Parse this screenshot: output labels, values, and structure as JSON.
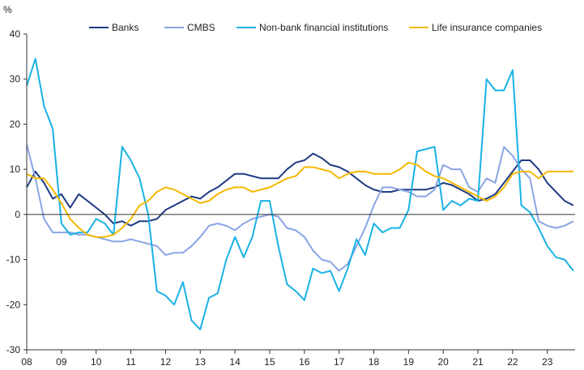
{
  "chart_data": {
    "type": "line",
    "title": "",
    "xlabel": "",
    "ylabel": "%",
    "ylim": [
      -30,
      40
    ],
    "yticks": [
      -30,
      -20,
      -10,
      0,
      10,
      20,
      30,
      40
    ],
    "xlim": [
      2008,
      2023.8
    ],
    "xtick_labels": [
      "08",
      "09",
      "10",
      "11",
      "12",
      "13",
      "14",
      "15",
      "16",
      "17",
      "18",
      "19",
      "20",
      "21",
      "22",
      "23"
    ],
    "xtick_values": [
      2008,
      2009,
      2010,
      2011,
      2012,
      2013,
      2014,
      2015,
      2016,
      2017,
      2018,
      2019,
      2020,
      2021,
      2022,
      2023
    ],
    "legend_position": "top",
    "series": [
      {
        "name": "Banks",
        "color": "#1f3b84",
        "x": [
          2008,
          2008.25,
          2008.5,
          2008.75,
          2009,
          2009.25,
          2009.5,
          2009.75,
          2010,
          2010.25,
          2010.5,
          2010.75,
          2011,
          2011.25,
          2011.5,
          2011.75,
          2012,
          2012.25,
          2012.5,
          2012.75,
          2013,
          2013.25,
          2013.5,
          2013.75,
          2014,
          2014.25,
          2014.5,
          2014.75,
          2015,
          2015.25,
          2015.5,
          2015.75,
          2016,
          2016.25,
          2016.5,
          2016.75,
          2017,
          2017.25,
          2017.5,
          2017.75,
          2018,
          2018.25,
          2018.5,
          2018.75,
          2019,
          2019.25,
          2019.5,
          2019.75,
          2020,
          2020.25,
          2020.5,
          2020.75,
          2021,
          2021.25,
          2021.5,
          2021.75,
          2022,
          2022.25,
          2022.5,
          2022.75,
          2023,
          2023.25,
          2023.5,
          2023.75
        ],
        "values": [
          6,
          9.5,
          7,
          3.5,
          4.5,
          1.5,
          4.5,
          3,
          1.5,
          0,
          -2,
          -1.5,
          -2.5,
          -1.5,
          -1.5,
          -1,
          1,
          2,
          3,
          4,
          3.5,
          5,
          6,
          7.5,
          9,
          9,
          8.5,
          8,
          8,
          8,
          10,
          11.5,
          12,
          13.5,
          12.5,
          11,
          10.5,
          9.5,
          8,
          6.5,
          5.5,
          5,
          5,
          5.5,
          5.5,
          5.5,
          5.5,
          6,
          7,
          6.5,
          5.5,
          4.5,
          3,
          3.5,
          4.5,
          7,
          9.5,
          12,
          12,
          10,
          7,
          5,
          3,
          2
        ]
      },
      {
        "name": "CMBS",
        "color": "#8aa4e4",
        "x": [
          2008,
          2008.25,
          2008.5,
          2008.75,
          2009,
          2009.25,
          2009.5,
          2009.75,
          2010,
          2010.25,
          2010.5,
          2010.75,
          2011,
          2011.25,
          2011.5,
          2011.75,
          2012,
          2012.25,
          2012.5,
          2012.75,
          2013,
          2013.25,
          2013.5,
          2013.75,
          2014,
          2014.25,
          2014.5,
          2014.75,
          2015,
          2015.25,
          2015.5,
          2015.75,
          2016,
          2016.25,
          2016.5,
          2016.75,
          2017,
          2017.25,
          2017.5,
          2017.75,
          2018,
          2018.25,
          2018.5,
          2018.75,
          2019,
          2019.25,
          2019.5,
          2019.75,
          2020,
          2020.25,
          2020.5,
          2020.75,
          2021,
          2021.25,
          2021.5,
          2021.75,
          2022,
          2022.25,
          2022.5,
          2022.75,
          2023,
          2023.25,
          2023.5,
          2023.75
        ],
        "values": [
          15.5,
          8,
          -1,
          -4,
          -4,
          -4,
          -4.5,
          -4.5,
          -5,
          -5.5,
          -6,
          -6,
          -5.5,
          -6,
          -6.5,
          -7,
          -9,
          -8.5,
          -8.5,
          -7,
          -5,
          -2.5,
          -2,
          -2.5,
          -3.5,
          -2,
          -1,
          -0.5,
          0,
          -0.5,
          -3,
          -3.5,
          -5,
          -8,
          -10,
          -10.5,
          -12.5,
          -11,
          -7,
          -3,
          2,
          6,
          6,
          5.5,
          5,
          4,
          4,
          5.5,
          11,
          10,
          10,
          6,
          5,
          8,
          7,
          15,
          13,
          10,
          8,
          -1.5,
          -2.5,
          -3,
          -2.5,
          -1.5
        ]
      },
      {
        "name": "Non-bank financial institutions",
        "color": "#19b2e4",
        "x": [
          2008,
          2008.25,
          2008.5,
          2008.75,
          2009,
          2009.25,
          2009.5,
          2009.75,
          2010,
          2010.25,
          2010.5,
          2010.75,
          2011,
          2011.25,
          2011.5,
          2011.75,
          2012,
          2012.25,
          2012.5,
          2012.75,
          2013,
          2013.25,
          2013.5,
          2013.75,
          2014,
          2014.25,
          2014.5,
          2014.75,
          2015,
          2015.25,
          2015.5,
          2015.75,
          2016,
          2016.25,
          2016.5,
          2016.75,
          2017,
          2017.25,
          2017.5,
          2017.75,
          2018,
          2018.25,
          2018.5,
          2018.75,
          2019,
          2019.25,
          2019.5,
          2019.75,
          2020,
          2020.25,
          2020.5,
          2020.75,
          2021,
          2021.25,
          2021.5,
          2021.75,
          2022,
          2022.25,
          2022.5,
          2022.75,
          2023,
          2023.25,
          2023.5,
          2023.75
        ],
        "values": [
          28.5,
          34.5,
          24,
          19,
          -2,
          -4.5,
          -4,
          -4,
          -1,
          -2,
          -4.5,
          15,
          12,
          8,
          0,
          -17,
          -18,
          -20,
          -15,
          -23.5,
          -25.5,
          -18.5,
          -17.5,
          -10,
          -5,
          -9.5,
          -5,
          3,
          3,
          -7,
          -15.5,
          -17,
          -19,
          -12,
          -13,
          -12.5,
          -17,
          -12,
          -5.5,
          -9,
          -2,
          -4,
          -3,
          -3,
          1,
          14,
          14.5,
          15,
          1,
          3,
          2,
          3.5,
          3,
          30,
          27.5,
          27.5,
          32,
          2,
          0.5,
          -3,
          -7,
          -9.5,
          -10,
          -12.5
        ]
      },
      {
        "name": "Life insurance companies",
        "color": "#f5b800",
        "x": [
          2008,
          2008.25,
          2008.5,
          2008.75,
          2009,
          2009.25,
          2009.5,
          2009.75,
          2010,
          2010.25,
          2010.5,
          2010.75,
          2011,
          2011.25,
          2011.5,
          2011.75,
          2012,
          2012.25,
          2012.5,
          2012.75,
          2013,
          2013.25,
          2013.5,
          2013.75,
          2014,
          2014.25,
          2014.5,
          2014.75,
          2015,
          2015.25,
          2015.5,
          2015.75,
          2016,
          2016.25,
          2016.5,
          2016.75,
          2017,
          2017.25,
          2017.5,
          2017.75,
          2018,
          2018.25,
          2018.5,
          2018.75,
          2019,
          2019.25,
          2019.5,
          2019.75,
          2020,
          2020.25,
          2020.5,
          2020.75,
          2021,
          2021.25,
          2021.5,
          2021.75,
          2022,
          2022.25,
          2022.5,
          2022.75,
          2023,
          2023.25,
          2023.5,
          2023.75
        ],
        "values": [
          9,
          8,
          8,
          5.5,
          2.5,
          -1,
          -3,
          -4.5,
          -5,
          -5,
          -4.5,
          -3,
          -1,
          2,
          3,
          5,
          6,
          5.5,
          4.5,
          3.5,
          2.5,
          3,
          4.5,
          5.5,
          6,
          6,
          5,
          5.5,
          6,
          7,
          8,
          8.5,
          10.5,
          10.5,
          10,
          9.5,
          8,
          9,
          9.5,
          9.5,
          9,
          9,
          9,
          10,
          11.5,
          11,
          9.5,
          8.5,
          8,
          7,
          6,
          5,
          4,
          3,
          4,
          6,
          9,
          9.5,
          9.5,
          8,
          9.5,
          9.5,
          9.5,
          9.5
        ]
      }
    ]
  }
}
